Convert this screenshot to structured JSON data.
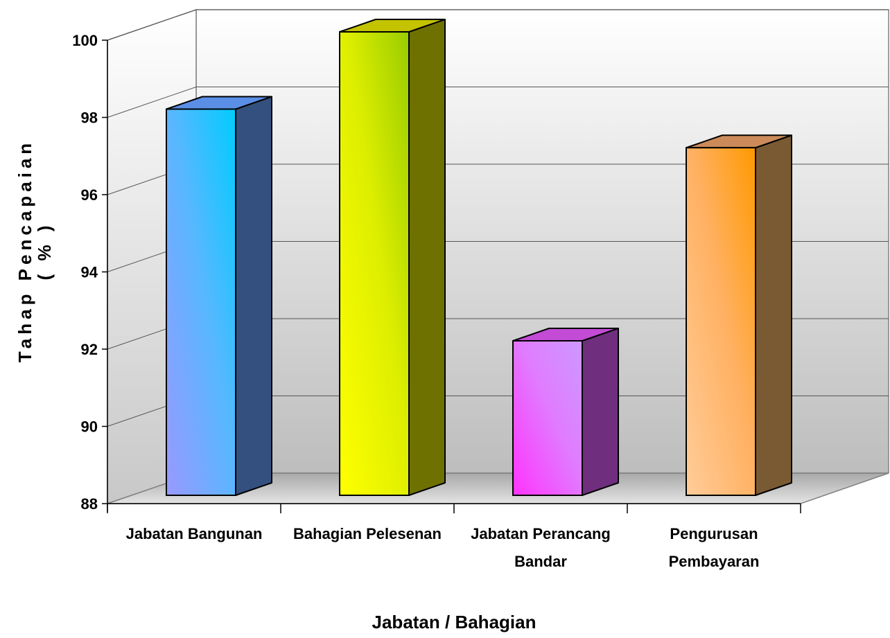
{
  "chart_data": {
    "type": "bar",
    "style": "3d-column",
    "categories": [
      [
        "Jabatan Bangunan"
      ],
      [
        "Bahagian Pelesenan"
      ],
      [
        "Jabatan Perancang",
        "Bandar"
      ],
      [
        "Pengurusan",
        "Pembayaran"
      ]
    ],
    "values": [
      98.0,
      100.0,
      92.0,
      97.0
    ],
    "ylim": [
      88,
      100
    ],
    "yticks": [
      88,
      90,
      92,
      94,
      96,
      98,
      100
    ],
    "xlabel": "Jabatan / Bahagian",
    "ylabel": [
      "Tahap Pencapaian",
      "( % )"
    ],
    "grid": true,
    "legend": "none",
    "colors": [
      {
        "light": "#9999ff",
        "mid": "#55b8ff",
        "dark": "#00ccff",
        "side": "#34507e",
        "top": "#5b8fe6"
      },
      {
        "light": "#ffff00",
        "mid": "#ddee00",
        "dark": "#99cc00",
        "side": "#6e7100",
        "top": "#c3c300"
      },
      {
        "light": "#ff33ff",
        "mid": "#e07cff",
        "dark": "#cc99ff",
        "side": "#6f2f7e",
        "top": "#c34bd6"
      },
      {
        "light": "#ffcc99",
        "mid": "#ffb060",
        "dark": "#ff9900",
        "side": "#7a5a33",
        "top": "#cc8a5a"
      }
    ]
  }
}
